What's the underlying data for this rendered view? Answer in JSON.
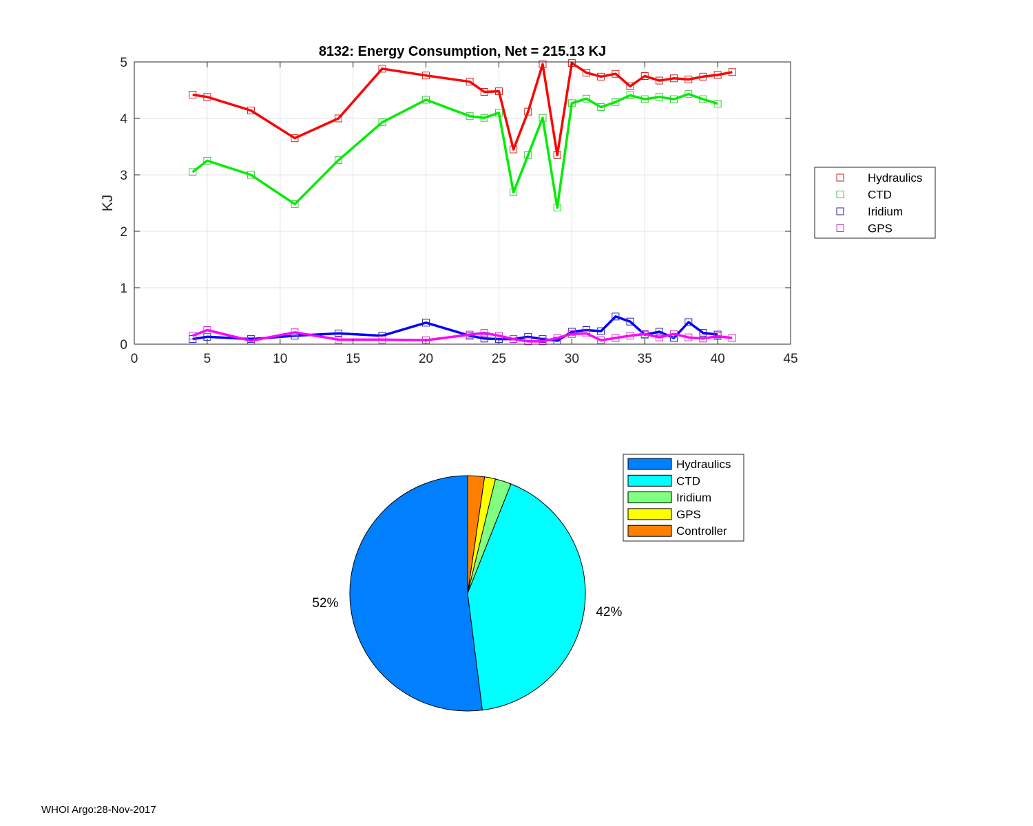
{
  "chart_data": [
    {
      "type": "line",
      "title": "8132: Energy Consumption,  Net = 215.13 KJ",
      "xlabel": "",
      "ylabel": "KJ",
      "xlim": [
        0,
        45
      ],
      "ylim": [
        0,
        5
      ],
      "xticks": [
        0,
        5,
        10,
        15,
        20,
        25,
        30,
        35,
        40,
        45
      ],
      "yticks": [
        0,
        1,
        2,
        3,
        4,
        5
      ],
      "grid": true,
      "legend_position": "outside-right",
      "series": [
        {
          "name": "Hydraulics",
          "color": "#ff0000",
          "marker_color": "#cc2222",
          "x": [
            4,
            5,
            8,
            11,
            14,
            17,
            20,
            23,
            24,
            25,
            26,
            27,
            28,
            29,
            30,
            31,
            32,
            33,
            34,
            35,
            36,
            37,
            38,
            39,
            40,
            41
          ],
          "y": [
            4.42,
            4.38,
            4.14,
            3.65,
            4.0,
            4.88,
            4.76,
            4.65,
            4.47,
            4.48,
            3.45,
            4.12,
            4.96,
            3.35,
            4.98,
            4.81,
            4.74,
            4.79,
            4.57,
            4.75,
            4.67,
            4.71,
            4.69,
            4.74,
            4.77,
            4.82
          ]
        },
        {
          "name": "CTD",
          "color": "#00ee00",
          "marker_color": "#33cc33",
          "x": [
            4,
            5,
            8,
            11,
            14,
            17,
            20,
            23,
            24,
            25,
            26,
            27,
            28,
            29,
            30,
            31,
            32,
            33,
            34,
            35,
            36,
            37,
            38,
            39,
            40
          ],
          "y": [
            3.05,
            3.25,
            3.0,
            2.48,
            3.26,
            3.93,
            4.33,
            4.04,
            4.01,
            4.1,
            2.69,
            3.35,
            4.01,
            2.42,
            4.27,
            4.35,
            4.2,
            4.29,
            4.41,
            4.34,
            4.38,
            4.34,
            4.43,
            4.34,
            4.26
          ]
        },
        {
          "name": "Iridium",
          "color": "#0000ff",
          "marker_color": "#2222aa",
          "x": [
            4,
            5,
            8,
            11,
            14,
            17,
            20,
            23,
            24,
            25,
            26,
            27,
            28,
            29,
            30,
            31,
            32,
            33,
            34,
            35,
            36,
            37,
            38,
            39,
            40
          ],
          "y": [
            0.09,
            0.13,
            0.09,
            0.15,
            0.19,
            0.15,
            0.38,
            0.15,
            0.1,
            0.09,
            0.09,
            0.13,
            0.09,
            0.06,
            0.22,
            0.25,
            0.23,
            0.49,
            0.4,
            0.17,
            0.22,
            0.11,
            0.39,
            0.2,
            0.17
          ]
        },
        {
          "name": "GPS",
          "color": "#ff00ff",
          "marker_color": "#cc33cc",
          "x": [
            4,
            5,
            8,
            11,
            14,
            17,
            20,
            23,
            24,
            25,
            26,
            27,
            28,
            29,
            30,
            31,
            32,
            33,
            34,
            35,
            36,
            37,
            38,
            39,
            40,
            41
          ],
          "y": [
            0.15,
            0.25,
            0.06,
            0.21,
            0.08,
            0.08,
            0.07,
            0.17,
            0.2,
            0.15,
            0.09,
            0.05,
            0.05,
            0.11,
            0.18,
            0.19,
            0.07,
            0.11,
            0.15,
            0.18,
            0.12,
            0.18,
            0.12,
            0.1,
            0.14,
            0.11
          ]
        }
      ]
    },
    {
      "type": "pie",
      "legend_position": "top-right",
      "slices": [
        {
          "name": "Hydraulics",
          "value": 52.0,
          "label": "52%",
          "color": "#0080ff"
        },
        {
          "name": "CTD",
          "value": 42.0,
          "label": "42%",
          "color": "#00ffff"
        },
        {
          "name": "Iridium",
          "value": 2.2,
          "label": "",
          "color": "#80ff80"
        },
        {
          "name": "GPS",
          "value": 1.5,
          "label": "",
          "color": "#ffff00"
        },
        {
          "name": "Controller",
          "value": 2.3,
          "label": "",
          "color": "#ff8000"
        }
      ]
    }
  ],
  "footer": "WHOI Argo:28-Nov-2017"
}
